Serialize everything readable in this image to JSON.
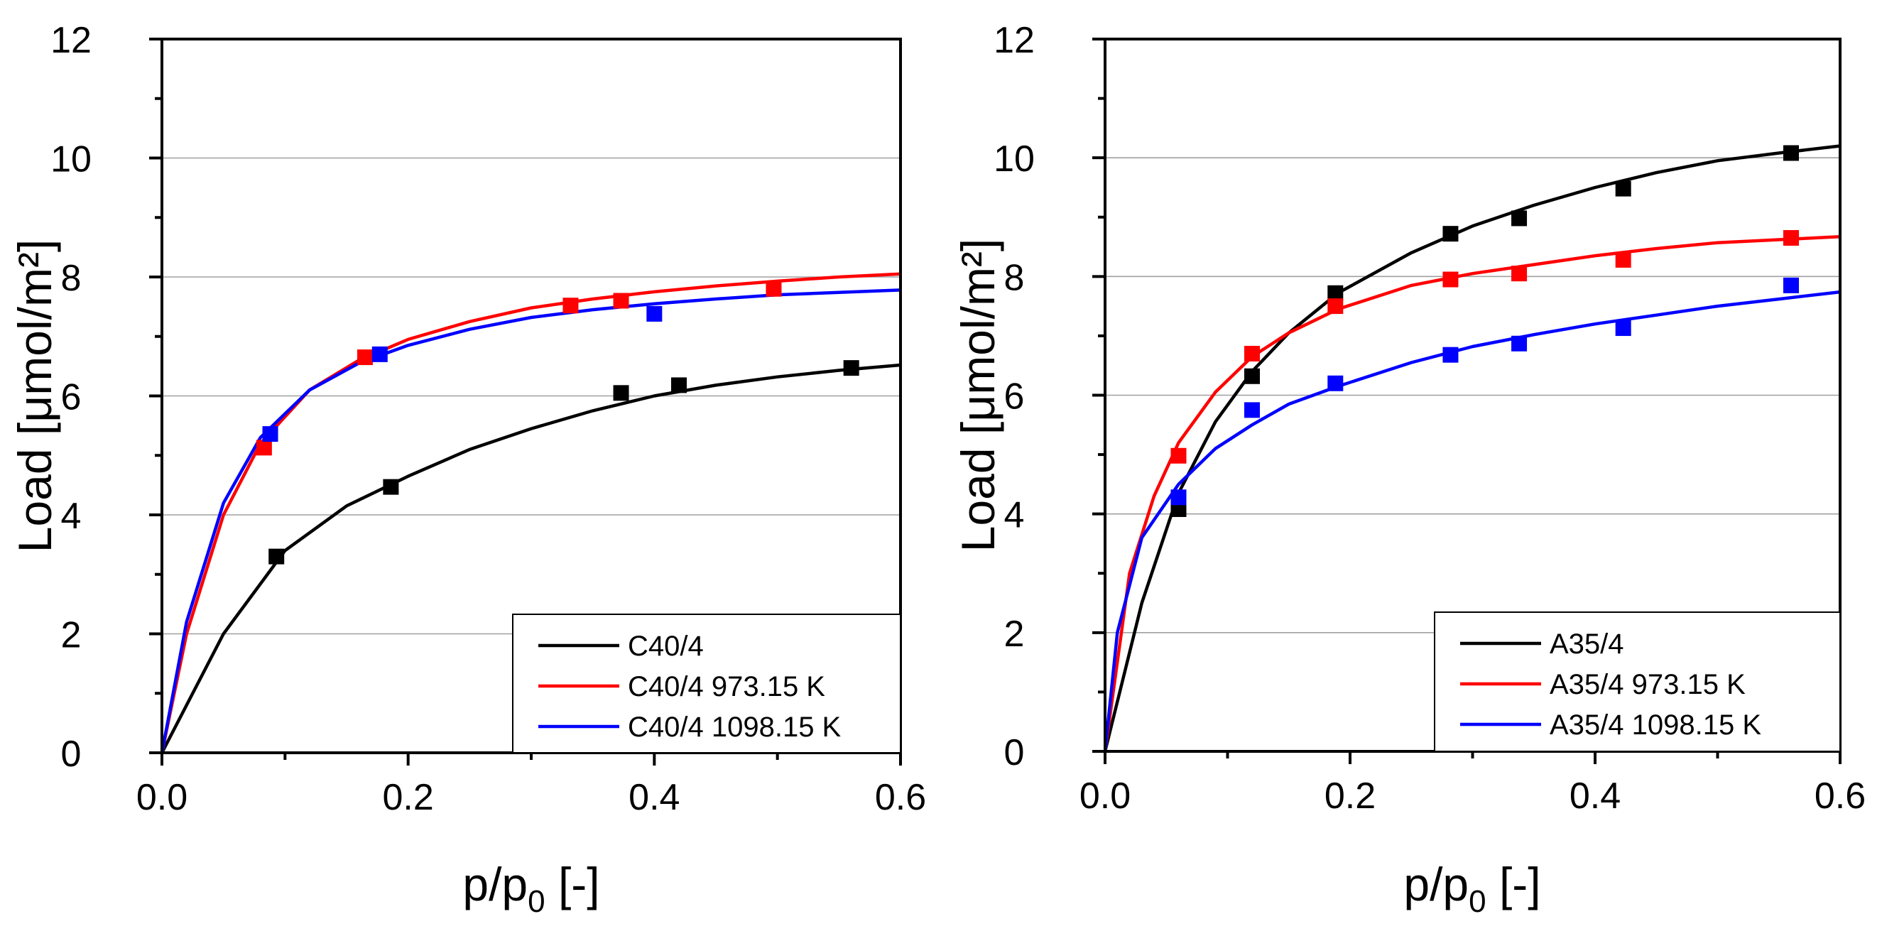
{
  "colors": {
    "black": "#000000",
    "red": "#ff0000",
    "blue": "#0000ff",
    "grid": "#a0a0a0"
  },
  "chart_data": [
    {
      "type": "scatter",
      "title": "",
      "xlabel": "p/p0 [-]",
      "xlabel_main": "p/p",
      "xlabel_sub": "0",
      "xlabel_tail": " [-]",
      "ylabel": "Load [μmol/m²]",
      "xlim": [
        0,
        0.6
      ],
      "ylim": [
        0,
        12
      ],
      "xticks": [
        0.0,
        0.2,
        0.4,
        0.6
      ],
      "xtick_labels": [
        "0.0",
        "0.2",
        "0.4",
        "0.6"
      ],
      "yticks": [
        0,
        2,
        4,
        6,
        8,
        10,
        12
      ],
      "ytick_labels": [
        "0",
        "2",
        "4",
        "6",
        "8",
        "10",
        "12"
      ],
      "grid": "horizontal",
      "legend_position": "bottom-right",
      "series": [
        {
          "name": "C40/4",
          "color": "#000000",
          "points": [
            [
              0.093,
              3.3
            ],
            [
              0.186,
              4.47
            ],
            [
              0.373,
              6.05
            ],
            [
              0.42,
              6.18
            ],
            [
              0.56,
              6.47
            ]
          ],
          "fit": [
            [
              0.0,
              0.0
            ],
            [
              0.05,
              2.0
            ],
            [
              0.1,
              3.4
            ],
            [
              0.15,
              4.15
            ],
            [
              0.2,
              4.65
            ],
            [
              0.25,
              5.1
            ],
            [
              0.3,
              5.45
            ],
            [
              0.35,
              5.75
            ],
            [
              0.4,
              6.0
            ],
            [
              0.45,
              6.18
            ],
            [
              0.5,
              6.32
            ],
            [
              0.55,
              6.43
            ],
            [
              0.6,
              6.52
            ]
          ]
        },
        {
          "name": "C40/4 973.15 K",
          "color": "#ff0000",
          "points": [
            [
              0.083,
              5.13
            ],
            [
              0.165,
              6.65
            ],
            [
              0.332,
              7.52
            ],
            [
              0.373,
              7.6
            ],
            [
              0.497,
              7.8
            ]
          ],
          "fit": [
            [
              0.0,
              0.0
            ],
            [
              0.02,
              2.0
            ],
            [
              0.05,
              4.0
            ],
            [
              0.08,
              5.2
            ],
            [
              0.12,
              6.1
            ],
            [
              0.16,
              6.6
            ],
            [
              0.2,
              6.95
            ],
            [
              0.25,
              7.25
            ],
            [
              0.3,
              7.48
            ],
            [
              0.35,
              7.63
            ],
            [
              0.4,
              7.75
            ],
            [
              0.45,
              7.85
            ],
            [
              0.5,
              7.93
            ],
            [
              0.55,
              8.0
            ],
            [
              0.6,
              8.05
            ]
          ]
        },
        {
          "name": "C40/4 1098.15 K",
          "color": "#0000ff",
          "points": [
            [
              0.088,
              5.36
            ],
            [
              0.177,
              6.7
            ],
            [
              0.4,
              7.38
            ]
          ],
          "fit": [
            [
              0.0,
              0.0
            ],
            [
              0.02,
              2.2
            ],
            [
              0.05,
              4.2
            ],
            [
              0.08,
              5.3
            ],
            [
              0.12,
              6.1
            ],
            [
              0.16,
              6.55
            ],
            [
              0.2,
              6.85
            ],
            [
              0.25,
              7.12
            ],
            [
              0.3,
              7.32
            ],
            [
              0.35,
              7.45
            ],
            [
              0.4,
              7.55
            ],
            [
              0.45,
              7.63
            ],
            [
              0.5,
              7.7
            ],
            [
              0.55,
              7.74
            ],
            [
              0.6,
              7.78
            ]
          ]
        }
      ]
    },
    {
      "type": "scatter",
      "title": "",
      "xlabel": "p/p0 [-]",
      "xlabel_main": "p/p",
      "xlabel_sub": "0",
      "xlabel_tail": " [-]",
      "ylabel": "Load [μmol/m²]",
      "xlim": [
        0,
        0.6
      ],
      "ylim": [
        0,
        12
      ],
      "xticks": [
        0.0,
        0.2,
        0.4,
        0.6
      ],
      "xtick_labels": [
        "0.0",
        "0.2",
        "0.4",
        "0.6"
      ],
      "yticks": [
        0,
        2,
        4,
        6,
        8,
        10,
        12
      ],
      "ytick_labels": [
        "0",
        "2",
        "4",
        "6",
        "8",
        "10",
        "12"
      ],
      "grid": "horizontal",
      "legend_position": "bottom-right",
      "series": [
        {
          "name": "A35/4",
          "color": "#000000",
          "points": [
            [
              0.06,
              4.08
            ],
            [
              0.12,
              6.32
            ],
            [
              0.188,
              7.72
            ],
            [
              0.282,
              8.72
            ],
            [
              0.338,
              8.98
            ],
            [
              0.423,
              9.48
            ],
            [
              0.56,
              10.08
            ]
          ],
          "fit": [
            [
              0.0,
              0.0
            ],
            [
              0.03,
              2.5
            ],
            [
              0.06,
              4.35
            ],
            [
              0.09,
              5.55
            ],
            [
              0.12,
              6.4
            ],
            [
              0.15,
              7.05
            ],
            [
              0.19,
              7.72
            ],
            [
              0.25,
              8.4
            ],
            [
              0.3,
              8.85
            ],
            [
              0.35,
              9.2
            ],
            [
              0.4,
              9.5
            ],
            [
              0.45,
              9.75
            ],
            [
              0.5,
              9.95
            ],
            [
              0.55,
              10.08
            ],
            [
              0.6,
              10.2
            ]
          ]
        },
        {
          "name": "A35/4 973.15 K",
          "color": "#ff0000",
          "points": [
            [
              0.06,
              4.98
            ],
            [
              0.12,
              6.7
            ],
            [
              0.188,
              7.5
            ],
            [
              0.282,
              7.95
            ],
            [
              0.338,
              8.05
            ],
            [
              0.423,
              8.28
            ],
            [
              0.56,
              8.65
            ]
          ],
          "fit": [
            [
              0.0,
              0.0
            ],
            [
              0.02,
              3.0
            ],
            [
              0.04,
              4.3
            ],
            [
              0.06,
              5.2
            ],
            [
              0.09,
              6.05
            ],
            [
              0.12,
              6.65
            ],
            [
              0.15,
              7.05
            ],
            [
              0.19,
              7.45
            ],
            [
              0.25,
              7.85
            ],
            [
              0.3,
              8.05
            ],
            [
              0.35,
              8.2
            ],
            [
              0.4,
              8.35
            ],
            [
              0.45,
              8.47
            ],
            [
              0.5,
              8.57
            ],
            [
              0.55,
              8.62
            ],
            [
              0.6,
              8.67
            ]
          ]
        },
        {
          "name": "A35/4 1098.15 K",
          "color": "#0000ff",
          "points": [
            [
              0.06,
              4.28
            ],
            [
              0.12,
              5.75
            ],
            [
              0.188,
              6.2
            ],
            [
              0.282,
              6.68
            ],
            [
              0.338,
              6.87
            ],
            [
              0.423,
              7.13
            ],
            [
              0.56,
              7.85
            ]
          ],
          "fit": [
            [
              0.0,
              0.0
            ],
            [
              0.01,
              2.0
            ],
            [
              0.03,
              3.6
            ],
            [
              0.06,
              4.5
            ],
            [
              0.09,
              5.1
            ],
            [
              0.12,
              5.5
            ],
            [
              0.15,
              5.85
            ],
            [
              0.19,
              6.15
            ],
            [
              0.25,
              6.55
            ],
            [
              0.3,
              6.82
            ],
            [
              0.35,
              7.02
            ],
            [
              0.4,
              7.2
            ],
            [
              0.45,
              7.35
            ],
            [
              0.5,
              7.5
            ],
            [
              0.55,
              7.62
            ],
            [
              0.6,
              7.74
            ]
          ]
        }
      ]
    }
  ]
}
